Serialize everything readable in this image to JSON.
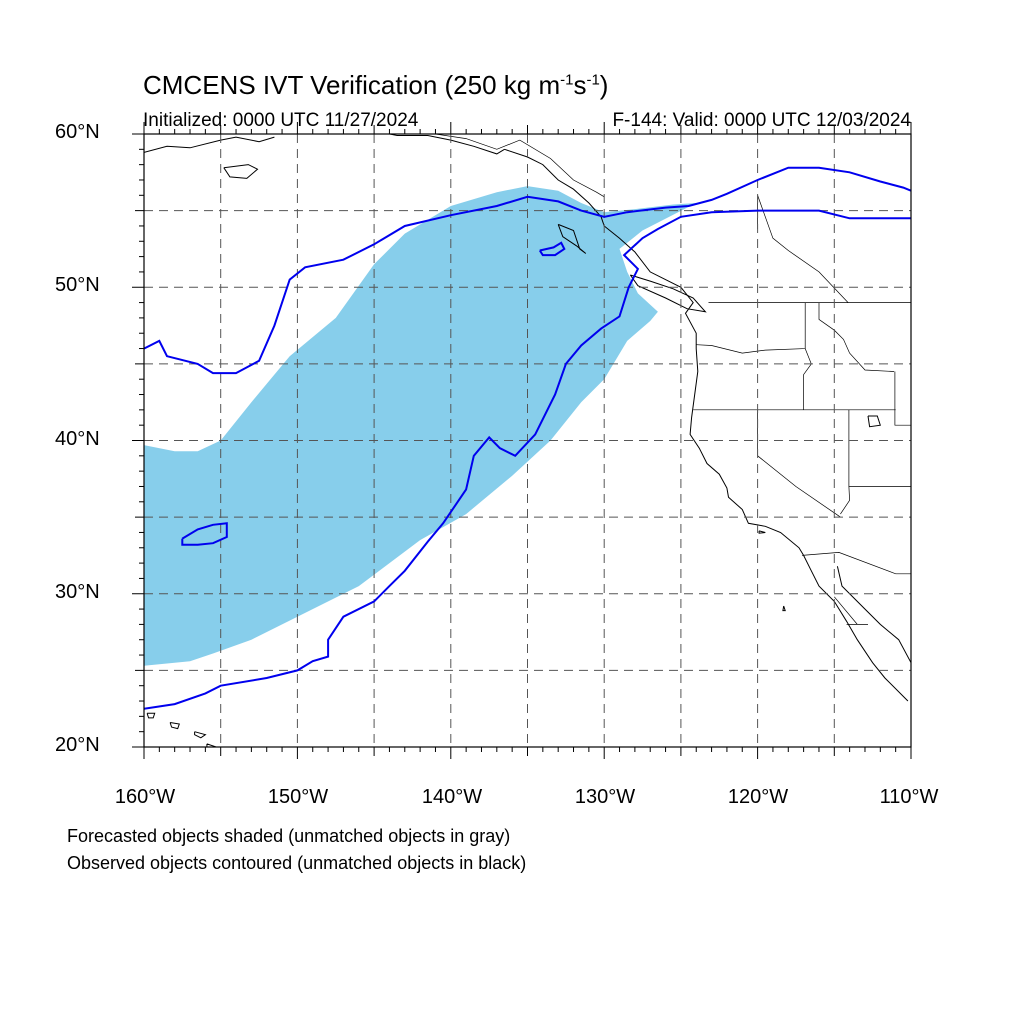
{
  "title": {
    "main": "CMCENS IVT Verification (250 kg m",
    "sup1": "-1",
    "mid": "s",
    "sup2": "-1",
    "end": ")"
  },
  "subtitle": {
    "initialized": "Initialized: 0000 UTC 11/27/2024",
    "valid": "F-144: Valid: 0000 UTC 12/03/2024"
  },
  "axes": {
    "lat_labels": [
      "60°N",
      "50°N",
      "40°N",
      "30°N",
      "20°N"
    ],
    "lon_labels": [
      "160°W",
      "150°W",
      "140°W",
      "130°W",
      "120°W",
      "110°W"
    ],
    "lat_range": [
      20,
      60
    ],
    "lon_range": [
      -160,
      -110
    ],
    "grid_spacing_deg": 5,
    "grid": "dashed"
  },
  "legend_notes": {
    "forecast": "Forecasted objects shaded (unmatched objects in gray)",
    "observed": "Observed objects contoured (unmatched objects in black)"
  },
  "colors": {
    "forecast_fill": "#87ceeb",
    "observed_contour": "#0000ee",
    "coastline": "#000000",
    "grid": "#555555"
  },
  "forecast_object": {
    "name": "forecast-ivt-object",
    "polygon": [
      [
        -160,
        39.7
      ],
      [
        -158,
        39.3
      ],
      [
        -156.5,
        39.3
      ],
      [
        -155,
        40
      ],
      [
        -153,
        42.5
      ],
      [
        -150.5,
        45.5
      ],
      [
        -147.5,
        48
      ],
      [
        -145,
        51.5
      ],
      [
        -143,
        53.5
      ],
      [
        -140,
        55.3
      ],
      [
        -137,
        56.2
      ],
      [
        -135,
        56.6
      ],
      [
        -133,
        56.3
      ],
      [
        -131.5,
        55.5
      ],
      [
        -130,
        54.9
      ],
      [
        -128,
        55.1
      ],
      [
        -125.5,
        55.4
      ],
      [
        -124,
        55.5
      ],
      [
        -127.5,
        53.7
      ],
      [
        -129,
        52.5
      ],
      [
        -128.5,
        51
      ],
      [
        -127.8,
        49.6
      ],
      [
        -126.5,
        48.4
      ],
      [
        -127,
        47.8
      ],
      [
        -128.5,
        46.5
      ],
      [
        -130,
        44
      ],
      [
        -131.5,
        42.5
      ],
      [
        -133.5,
        40
      ],
      [
        -136,
        37.7
      ],
      [
        -139,
        35.2
      ],
      [
        -142,
        33.5
      ],
      [
        -146,
        30.5
      ],
      [
        -150,
        28.5
      ],
      [
        -153,
        27
      ],
      [
        -155.5,
        26.1
      ],
      [
        -157,
        25.6
      ],
      [
        -160,
        25.3
      ]
    ]
  },
  "observed_contours": [
    {
      "name": "observed-main-contour",
      "polyline": [
        [
          -160,
          22.5
        ],
        [
          -158,
          22.8
        ],
        [
          -156,
          23.5
        ],
        [
          -155,
          24
        ],
        [
          -152,
          24.5
        ],
        [
          -150,
          25
        ],
        [
          -149,
          25.6
        ],
        [
          -148,
          25.9
        ],
        [
          -148,
          27
        ],
        [
          -147,
          28.5
        ],
        [
          -145,
          29.5
        ],
        [
          -144,
          30.5
        ],
        [
          -143,
          31.5
        ],
        [
          -141.5,
          33.4
        ],
        [
          -140.5,
          34.6
        ],
        [
          -139,
          36.8
        ],
        [
          -138.5,
          39
        ],
        [
          -137.5,
          40.2
        ],
        [
          -136.8,
          39.5
        ],
        [
          -135.8,
          39
        ],
        [
          -134.5,
          40.4
        ],
        [
          -133.2,
          43
        ],
        [
          -132.5,
          45
        ],
        [
          -131.5,
          46.2
        ],
        [
          -130.2,
          47.3
        ],
        [
          -129,
          48.1
        ],
        [
          -128.4,
          50
        ],
        [
          -127.8,
          51.2
        ],
        [
          -128.7,
          52.1
        ],
        [
          -127.5,
          53.2
        ],
        [
          -126.5,
          53.8
        ],
        [
          -125,
          54.6
        ],
        [
          -123,
          54.9
        ],
        [
          -120,
          55
        ],
        [
          -116,
          55
        ],
        [
          -114,
          54.5
        ],
        [
          -110,
          54.5
        ]
      ]
    },
    {
      "name": "observed-north-contour",
      "polyline": [
        [
          -160,
          46
        ],
        [
          -159,
          46.5
        ],
        [
          -158.5,
          45.5
        ],
        [
          -156.5,
          45
        ],
        [
          -155.5,
          44.4
        ],
        [
          -154,
          44.4
        ],
        [
          -152.5,
          45.2
        ],
        [
          -151.5,
          47.5
        ],
        [
          -150.5,
          50.5
        ],
        [
          -149.5,
          51.3
        ],
        [
          -147,
          51.8
        ],
        [
          -145,
          52.8
        ],
        [
          -143,
          54
        ],
        [
          -140,
          54.7
        ],
        [
          -137,
          55.3
        ],
        [
          -135,
          55.9
        ],
        [
          -133,
          55.6
        ],
        [
          -131.5,
          55
        ],
        [
          -130,
          54.6
        ],
        [
          -128.5,
          54.9
        ],
        [
          -126,
          55.2
        ],
        [
          -124.5,
          55.3
        ],
        [
          -123,
          55.7
        ],
        [
          -122,
          56.1
        ],
        [
          -120,
          57
        ],
        [
          -118,
          57.8
        ],
        [
          -116,
          57.8
        ],
        [
          -114,
          57.5
        ],
        [
          -112,
          56.9
        ],
        [
          -110.5,
          56.5
        ],
        [
          -110,
          56.3
        ]
      ]
    },
    {
      "name": "observed-small-contour-south",
      "polyline": [
        [
          -157.5,
          33.6
        ],
        [
          -156.5,
          34.2
        ],
        [
          -155.5,
          34.5
        ],
        [
          -154.6,
          34.6
        ],
        [
          -154.6,
          33.7
        ],
        [
          -155.5,
          33.3
        ],
        [
          -156.5,
          33.2
        ],
        [
          -157.5,
          33.2
        ],
        [
          -157.5,
          33.6
        ]
      ]
    },
    {
      "name": "observed-small-contour-north",
      "polyline": [
        [
          -134.2,
          52.4
        ],
        [
          -133.3,
          52.6
        ],
        [
          -132.8,
          52.9
        ],
        [
          -132.6,
          52.5
        ],
        [
          -133.2,
          52.1
        ],
        [
          -134,
          52.1
        ],
        [
          -134.2,
          52.4
        ]
      ]
    }
  ],
  "coastlines": [
    {
      "name": "coastline-north-america",
      "polyline": [
        [
          -136.5,
          59
        ],
        [
          -135,
          58.5
        ],
        [
          -134,
          58
        ],
        [
          -133,
          57
        ],
        [
          -132,
          56.4
        ],
        [
          -131,
          55.5
        ],
        [
          -130.2,
          54.6
        ],
        [
          -130,
          54
        ],
        [
          -129,
          53.2
        ],
        [
          -128,
          52.3
        ],
        [
          -127,
          51
        ],
        [
          -125,
          50
        ],
        [
          -124.2,
          49
        ],
        [
          -124.7,
          48.3
        ],
        [
          -124,
          47
        ],
        [
          -124,
          46
        ],
        [
          -123.9,
          44.5
        ],
        [
          -124.1,
          43
        ],
        [
          -124.3,
          41.5
        ],
        [
          -124.4,
          40.4
        ],
        [
          -123.8,
          39.5
        ],
        [
          -123.3,
          38.5
        ],
        [
          -122.5,
          37.8
        ],
        [
          -122,
          36.9
        ],
        [
          -121.9,
          36.3
        ],
        [
          -121,
          35.5
        ],
        [
          -120.6,
          34.6
        ],
        [
          -119.5,
          34.4
        ],
        [
          -118.5,
          34
        ],
        [
          -117.3,
          33
        ],
        [
          -117,
          32.5
        ],
        [
          -116.5,
          31.5
        ],
        [
          -116,
          30.5
        ],
        [
          -115,
          29.5
        ],
        [
          -114.2,
          28.2
        ],
        [
          -113.5,
          27
        ],
        [
          -112.5,
          25.5
        ],
        [
          -111.7,
          24.5
        ],
        [
          -110.2,
          23
        ]
      ]
    },
    {
      "name": "coastline-alaska",
      "polyline": [
        [
          -160,
          58.8
        ],
        [
          -158.5,
          59.2
        ],
        [
          -157,
          59.1
        ],
        [
          -155,
          59.6
        ],
        [
          -154,
          59.8
        ],
        [
          -152.5,
          59.5
        ],
        [
          -151.5,
          59.8
        ]
      ]
    },
    {
      "name": "coastline-alaska-gulf",
      "polyline": [
        [
          -148,
          60
        ],
        [
          -146.5,
          60.2
        ],
        [
          -145,
          60.2
        ],
        [
          -143.5,
          59.9
        ],
        [
          -141.5,
          59.9
        ],
        [
          -140,
          59.6
        ],
        [
          -138.5,
          59.2
        ],
        [
          -137,
          58.7
        ],
        [
          -136.5,
          59
        ]
      ]
    },
    {
      "name": "coastline-gulf-of-california",
      "polyline": [
        [
          -114.8,
          31.8
        ],
        [
          -114.5,
          30.5
        ],
        [
          -113,
          29
        ],
        [
          -112,
          28
        ],
        [
          -110.8,
          27
        ],
        [
          -110,
          25.5
        ],
        [
          -109.5,
          24.5
        ]
      ]
    }
  ],
  "islands": [
    {
      "name": "island-kodiak",
      "polyline": [
        [
          -154.8,
          57.8
        ],
        [
          -153.2,
          58
        ],
        [
          -152.6,
          57.7
        ],
        [
          -153.3,
          57.1
        ],
        [
          -154.4,
          57.2
        ],
        [
          -154.8,
          57.8
        ]
      ]
    },
    {
      "name": "island-haida-gwaii",
      "polyline": [
        [
          -133,
          54.1
        ],
        [
          -132,
          53.7
        ],
        [
          -131.6,
          52.5
        ],
        [
          -131.2,
          52.2
        ],
        [
          -131.8,
          52.7
        ],
        [
          -132.7,
          53.3
        ],
        [
          -133,
          54.1
        ]
      ]
    },
    {
      "name": "island-vancouver",
      "polyline": [
        [
          -128.3,
          50.8
        ],
        [
          -127,
          50.4
        ],
        [
          -125.5,
          49.9
        ],
        [
          -124.2,
          49.3
        ],
        [
          -123.4,
          48.4
        ],
        [
          -124.6,
          48.6
        ],
        [
          -126,
          49.3
        ],
        [
          -127.8,
          50.1
        ],
        [
          -128.3,
          50.8
        ]
      ]
    },
    {
      "name": "island-hawaii-big",
      "polyline": [
        [
          -155.9,
          20.2
        ],
        [
          -155.0,
          19.9
        ],
        [
          -155.2,
          19.3
        ],
        [
          -155.9,
          19.5
        ],
        [
          -155.9,
          20.2
        ]
      ]
    },
    {
      "name": "island-maui",
      "polyline": [
        [
          -156.7,
          21
        ],
        [
          -156.0,
          20.8
        ],
        [
          -156.3,
          20.6
        ],
        [
          -156.7,
          20.8
        ],
        [
          -156.7,
          21
        ]
      ]
    },
    {
      "name": "island-oahu",
      "polyline": [
        [
          -158.3,
          21.6
        ],
        [
          -157.7,
          21.5
        ],
        [
          -157.8,
          21.2
        ],
        [
          -158.2,
          21.3
        ],
        [
          -158.3,
          21.6
        ]
      ]
    },
    {
      "name": "island-kauai",
      "polyline": [
        [
          -159.8,
          22.2
        ],
        [
          -159.3,
          22.2
        ],
        [
          -159.4,
          21.9
        ],
        [
          -159.7,
          21.9
        ],
        [
          -159.8,
          22.2
        ]
      ]
    },
    {
      "name": "island-channel",
      "polyline": [
        [
          -119.9,
          34.1
        ],
        [
          -119.5,
          34
        ],
        [
          -119.9,
          33.95
        ],
        [
          -119.9,
          34.1
        ]
      ]
    },
    {
      "name": "island-guadalupe",
      "polyline": [
        [
          -118.3,
          29.2
        ],
        [
          -118.2,
          28.9
        ],
        [
          -118.35,
          28.9
        ],
        [
          -118.3,
          29.2
        ]
      ]
    }
  ],
  "borders": [
    {
      "name": "border-us-canada",
      "polyline": [
        [
          -123.2,
          49
        ],
        [
          -110,
          49
        ]
      ]
    },
    {
      "name": "border-canada-alaska",
      "polyline": [
        [
          -141,
          60
        ],
        [
          -139,
          59.7
        ],
        [
          -137,
          59
        ],
        [
          -135.5,
          59.6
        ],
        [
          -133.5,
          58.4
        ],
        [
          -132,
          57
        ],
        [
          -130.5,
          56.2
        ],
        [
          -130,
          55.9
        ]
      ]
    },
    {
      "name": "border-bc-alberta",
      "polyline": [
        [
          -120,
          53.8
        ],
        [
          -120,
          55
        ],
        [
          -120,
          56
        ],
        [
          -119,
          53.2
        ],
        [
          -118,
          52.4
        ],
        [
          -116,
          51
        ],
        [
          -114.1,
          49
        ]
      ]
    },
    {
      "name": "border-wa-or",
      "polyline": [
        [
          -124,
          46.25
        ],
        [
          -123,
          46.2
        ],
        [
          -121,
          45.7
        ],
        [
          -119.5,
          45.9
        ],
        [
          -116.9,
          46
        ],
        [
          -116.9,
          49
        ]
      ]
    },
    {
      "name": "border-or-ca-nv",
      "polyline": [
        [
          -124.2,
          42
        ],
        [
          -120,
          42
        ],
        [
          -117,
          42
        ],
        [
          -111,
          42
        ]
      ]
    },
    {
      "name": "border-idaho-east",
      "polyline": [
        [
          -116.9,
          46
        ],
        [
          -116.5,
          45
        ],
        [
          -117,
          44.3
        ],
        [
          -117,
          42
        ]
      ]
    },
    {
      "name": "border-idaho-montana",
      "polyline": [
        [
          -116,
          49
        ],
        [
          -116,
          47.9
        ],
        [
          -115,
          47.2
        ],
        [
          -114.4,
          46.6
        ],
        [
          -114,
          45.7
        ],
        [
          -113,
          44.6
        ],
        [
          -111.1,
          44.5
        ]
      ]
    },
    {
      "name": "border-ca-nv",
      "polyline": [
        [
          -120,
          42
        ],
        [
          -120,
          39
        ],
        [
          -117.5,
          37
        ],
        [
          -114.6,
          35
        ]
      ]
    },
    {
      "name": "border-nv-az",
      "polyline": [
        [
          -114.05,
          42
        ],
        [
          -114.05,
          37
        ],
        [
          -114,
          36.1
        ],
        [
          -114.6,
          35.2
        ]
      ]
    },
    {
      "name": "border-ut-az",
      "polyline": [
        [
          -114.05,
          37
        ],
        [
          -110,
          37
        ]
      ]
    },
    {
      "name": "border-ut-wy",
      "polyline": [
        [
          -111.05,
          42
        ],
        [
          -111.05,
          41
        ],
        [
          -110,
          41
        ]
      ]
    },
    {
      "name": "border-wy-id",
      "polyline": [
        [
          -111.05,
          44.5
        ],
        [
          -111.05,
          42
        ]
      ]
    },
    {
      "name": "border-us-mexico",
      "polyline": [
        [
          -117.1,
          32.5
        ],
        [
          -114.7,
          32.7
        ],
        [
          -111,
          31.3
        ],
        [
          -110,
          31.3
        ]
      ]
    },
    {
      "name": "border-baja-sonora",
      "polyline": [
        [
          -115,
          29.8
        ],
        [
          -113.5,
          28
        ]
      ]
    },
    {
      "name": "border-bcs",
      "polyline": [
        [
          -114.2,
          28
        ],
        [
          -112.8,
          28
        ]
      ]
    }
  ],
  "lakes": [
    {
      "name": "great-salt-lake",
      "polyline": [
        [
          -112.8,
          41.6
        ],
        [
          -112.2,
          41.6
        ],
        [
          -112,
          41
        ],
        [
          -112.7,
          40.9
        ],
        [
          -112.8,
          41.6
        ]
      ]
    }
  ]
}
